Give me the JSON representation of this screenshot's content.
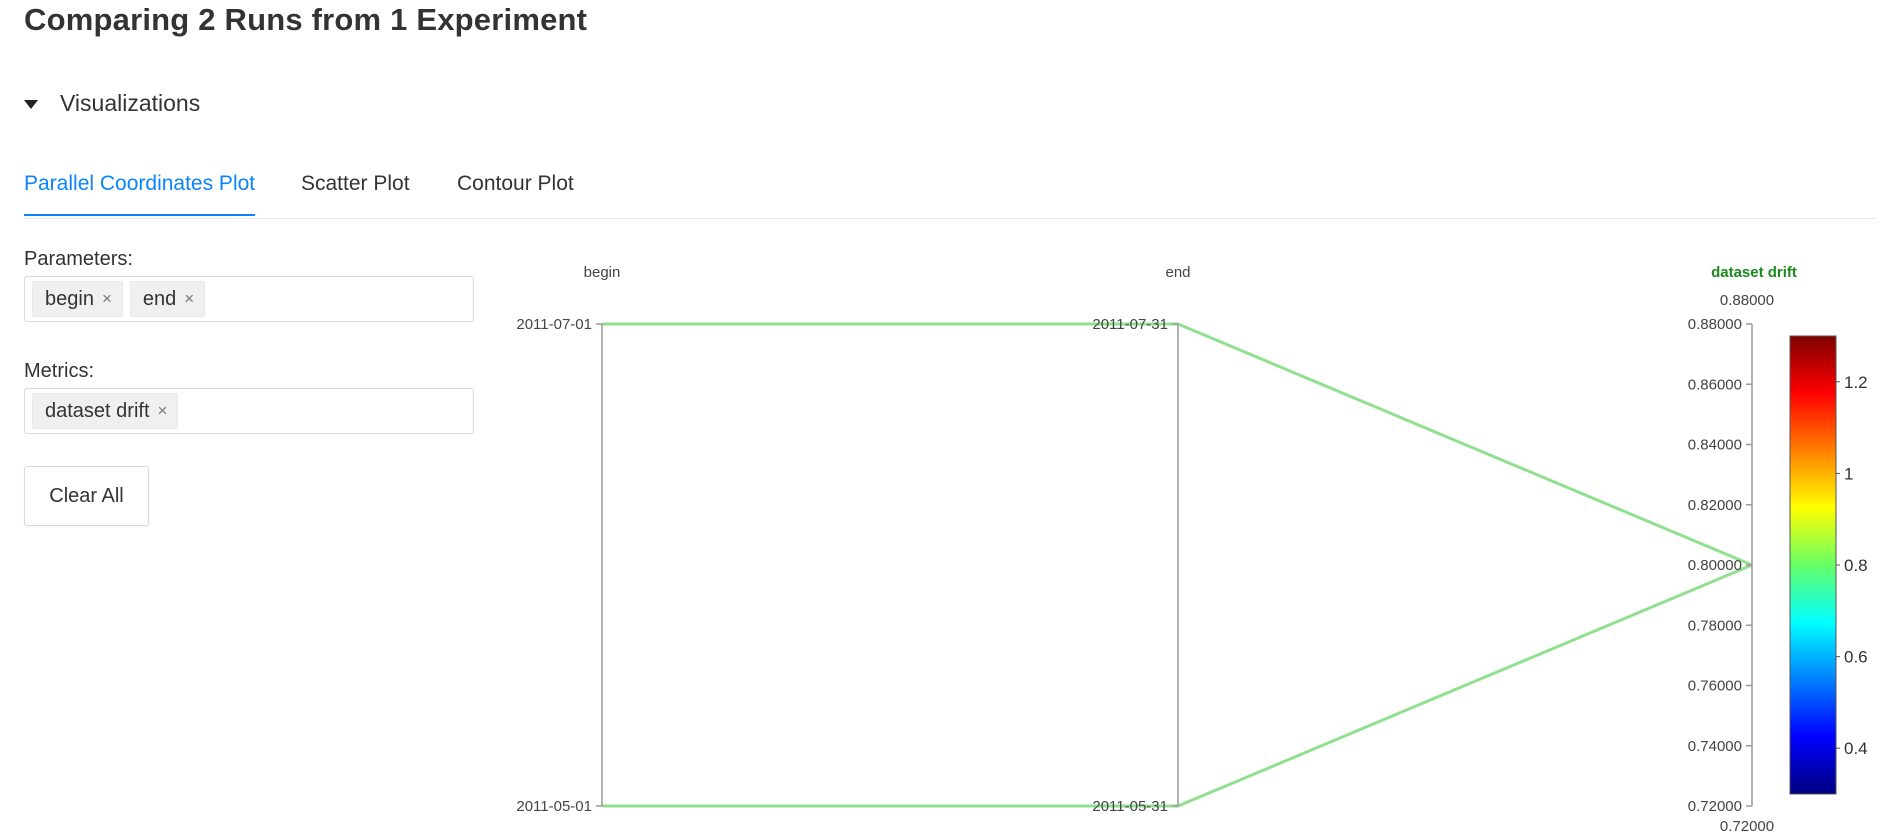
{
  "page": {
    "title": "Comparing 2 Runs from 1 Experiment"
  },
  "visualizations": {
    "label": "Visualizations",
    "expanded": true
  },
  "tabs": [
    {
      "label": "Parallel Coordinates Plot",
      "active": true
    },
    {
      "label": "Scatter Plot",
      "active": false
    },
    {
      "label": "Contour Plot",
      "active": false
    }
  ],
  "controls": {
    "parameters_label": "Parameters:",
    "parameters": [
      "begin",
      "end"
    ],
    "metrics_label": "Metrics:",
    "metrics": [
      "dataset drift"
    ],
    "clear_all_label": "Clear All",
    "tag_close_glyph": "×"
  },
  "chart_data": {
    "type": "parallel_coordinates",
    "axes": [
      {
        "name": "begin",
        "kind": "parameter",
        "ticks": [
          "2011-07-01",
          "2011-05-01"
        ]
      },
      {
        "name": "end",
        "kind": "parameter",
        "ticks": [
          "2011-07-31",
          "2011-05-31"
        ]
      },
      {
        "name": "dataset drift",
        "kind": "metric",
        "range": [
          0.72,
          0.88
        ],
        "range_labels": {
          "max": "0.88000",
          "min": "0.72000"
        },
        "ticks": [
          "0.88000",
          "0.86000",
          "0.84000",
          "0.82000",
          "0.80000",
          "0.78000",
          "0.76000",
          "0.74000",
          "0.72000"
        ]
      }
    ],
    "runs": [
      {
        "begin": "2011-07-01",
        "end": "2011-07-31",
        "dataset drift": 0.8
      },
      {
        "begin": "2011-05-01",
        "end": "2011-05-31",
        "dataset drift": 0.8
      }
    ],
    "line_color": "#90e090",
    "colorbar": {
      "min": 0.3,
      "max": 1.3,
      "ticks": [
        "1.2",
        "1",
        "0.8",
        "0.6",
        "0.4"
      ],
      "colorscale": "jet"
    }
  }
}
